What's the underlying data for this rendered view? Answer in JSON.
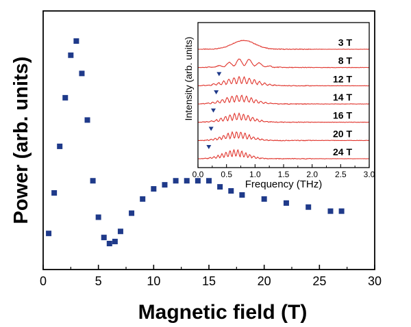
{
  "chart_data": [
    {
      "type": "scatter",
      "xlabel": "Magnetic field (T)",
      "ylabel": "Power (arb. units)",
      "xlim": [
        0,
        30
      ],
      "xticks": [
        "0",
        "5",
        "10",
        "15",
        "20",
        "25",
        "30"
      ],
      "y_ticks_labeled": false,
      "marker_color": "#1f3a8a",
      "series": [
        {
          "x": [
            0.5,
            1.0,
            1.5,
            2.0,
            2.5,
            3.0,
            3.5,
            4.0,
            4.5,
            5.0,
            5.5,
            6.0,
            6.5,
            7.0,
            8.0,
            9.0,
            10.0,
            11.0,
            12.0,
            13.0,
            14.0,
            15.0,
            16.0,
            17.0,
            18.0,
            20.0,
            22.0,
            24.0,
            26.0,
            27.0
          ],
          "y": [
            0.05,
            0.25,
            0.48,
            0.72,
            0.93,
            1.0,
            0.84,
            0.61,
            0.31,
            0.13,
            0.03,
            0.0,
            0.01,
            0.06,
            0.15,
            0.22,
            0.27,
            0.29,
            0.31,
            0.31,
            0.31,
            0.31,
            0.28,
            0.26,
            0.24,
            0.22,
            0.2,
            0.18,
            0.16,
            0.16
          ]
        }
      ]
    },
    {
      "type": "line",
      "xlabel": "Frequency (THz)",
      "ylabel": "Intensity (arb. units)",
      "xlim": [
        0.0,
        3.0
      ],
      "xticks": [
        "0.0",
        "0.5",
        "1.0",
        "1.5",
        "2.0",
        "2.5",
        "3.0"
      ],
      "y_ticks_labeled": false,
      "line_color": "#e0332b",
      "marker_color": "#1f3a8a",
      "series": [
        {
          "name": "3 T",
          "peak_center": 0.8,
          "peak_width": 0.28,
          "fringe_period": 0.0,
          "marker_x": null
        },
        {
          "name": "8 T",
          "peak_center": 0.8,
          "peak_width": 0.34,
          "fringe_period": 0.18,
          "marker_x": null
        },
        {
          "name": "12 T",
          "peak_center": 0.75,
          "peak_width": 0.38,
          "fringe_period": 0.09,
          "marker_x": 0.37
        },
        {
          "name": "14 T",
          "peak_center": 0.72,
          "peak_width": 0.36,
          "fringe_period": 0.085,
          "marker_x": 0.32
        },
        {
          "name": "16 T",
          "peak_center": 0.7,
          "peak_width": 0.34,
          "fringe_period": 0.08,
          "marker_x": 0.27
        },
        {
          "name": "20 T",
          "peak_center": 0.68,
          "peak_width": 0.32,
          "fringe_period": 0.075,
          "marker_x": 0.23
        },
        {
          "name": "24 T",
          "peak_center": 0.65,
          "peak_width": 0.3,
          "fringe_period": 0.07,
          "marker_x": 0.19
        }
      ]
    }
  ]
}
